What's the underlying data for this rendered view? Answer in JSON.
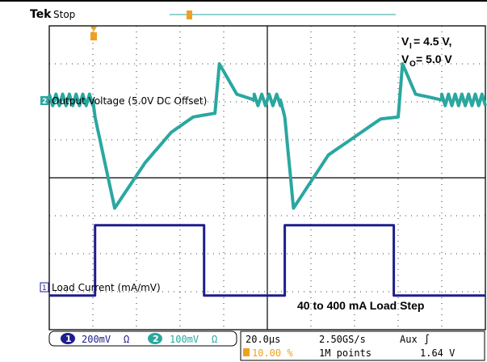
{
  "header": {
    "brand": "Tek",
    "acq_state": "Stop"
  },
  "channels": [
    {
      "number": "2",
      "label": "Output Voltage (5.0V DC Offset)",
      "color": "#2aa7a0"
    },
    {
      "number": "1",
      "label": "Load Current (mA/mV)",
      "color": "#1e1e8c"
    }
  ],
  "annotations": {
    "vi_main": "V",
    "vi_sub": "I",
    "vi_value": " = 4.5 V,",
    "vo_main": "V",
    "vo_sub": "O",
    "vo_value": " = 5.0 V",
    "load_step": "40 to 400 mA Load Step"
  },
  "readout": {
    "ch1_num": "1",
    "ch1_scale": "200mV",
    "ch1_bw": "Ω",
    "ch2_num": "2",
    "ch2_scale": "100mV",
    "ch2_bw": "Ω",
    "timebase": "20.0µs",
    "trigger_pos": "10.00 %",
    "sample_rate": "2.50GS/s",
    "record_length": "1M points",
    "trigger_source": "Aux",
    "trigger_slope": "∫",
    "trigger_level": "1.64 V"
  },
  "colors": {
    "ch1": "#1e1e8c",
    "ch2": "#2aa7a0",
    "trigger": "#f0a020",
    "grid": "#000000"
  },
  "chart_data": {
    "type": "line",
    "x_unit": "div",
    "xlim": [
      0,
      10
    ],
    "ylim": [
      -4,
      4
    ],
    "series": [
      {
        "name": "Output Voltage (5.0V DC Offset)",
        "x": [
          0,
          1.0,
          1.05,
          1.5,
          2.2,
          2.8,
          3.3,
          3.8,
          3.9,
          4.3,
          4.7,
          5.3,
          5.4,
          5.6,
          6.4,
          7.6,
          8.0,
          8.1,
          8.4,
          9.0,
          10.0
        ],
        "y": [
          2.05,
          2.05,
          1.6,
          -0.8,
          0.4,
          1.2,
          1.6,
          1.7,
          3.0,
          2.2,
          2.05,
          2.05,
          1.6,
          -0.8,
          0.6,
          1.55,
          1.6,
          3.0,
          2.2,
          2.05,
          2.05
        ]
      },
      {
        "name": "Load Current (mA/mV)",
        "x": [
          0,
          1.05,
          1.05,
          3.55,
          3.55,
          5.4,
          5.4,
          7.9,
          7.9,
          10.0
        ],
        "y": [
          -3.1,
          -3.1,
          -1.25,
          -1.25,
          -3.1,
          -3.1,
          -1.25,
          -1.25,
          -3.1,
          -3.1
        ]
      }
    ]
  }
}
